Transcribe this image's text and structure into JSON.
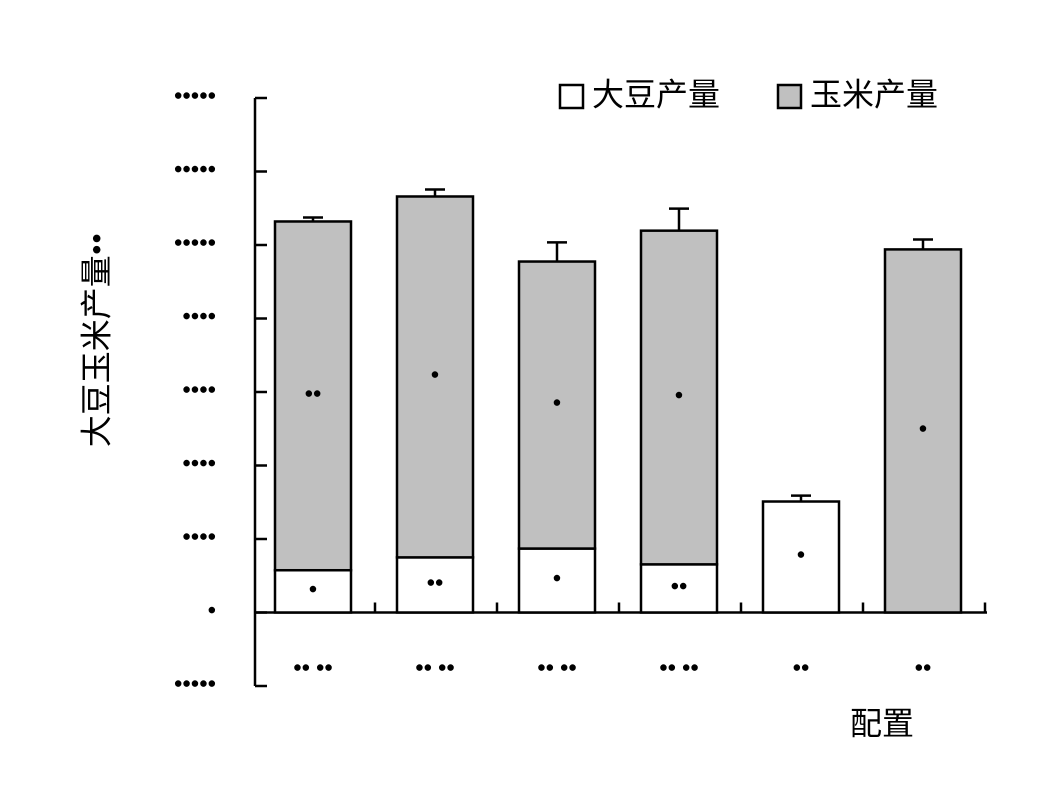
{
  "chart_data": {
    "type": "stacked_bar",
    "y_label": "大豆玉米产量••",
    "x_label": "配置",
    "categories": [
      "•• ••",
      "•• ••",
      "•• ••",
      "•• ••",
      "••",
      "••"
    ],
    "series": [
      {
        "name": "大豆产量",
        "color": "#ffffff",
        "values": [
          1150,
          1500,
          1740,
          1310,
          3020,
          null
        ],
        "errors": [
          80,
          160,
          240,
          160,
          160,
          null
        ],
        "letters": [
          "•",
          "••",
          "•",
          "••",
          "•",
          null
        ]
      },
      {
        "name": "玉米产量",
        "color": "#c0c0c0",
        "values": [
          9490,
          9820,
          7810,
          9080,
          null,
          9880
        ],
        "errors": [
          110,
          190,
          520,
          600,
          null,
          270
        ],
        "letters": [
          "••",
          "•",
          "•",
          "•",
          null,
          "•"
        ]
      }
    ],
    "ylim": [
      -2000,
      14000
    ],
    "yticks": [
      {
        "value": -2000,
        "label": "•••••"
      },
      {
        "value": 0,
        "label": "•"
      },
      {
        "value": 2000,
        "label": "••••"
      },
      {
        "value": 4000,
        "label": "••••"
      },
      {
        "value": 6000,
        "label": "••••"
      },
      {
        "value": 8000,
        "label": "••••"
      },
      {
        "value": 10000,
        "label": "•••••"
      },
      {
        "value": 12000,
        "label": "•••••"
      },
      {
        "value": 14000,
        "label": "•••••"
      }
    ],
    "legend": "top-right"
  }
}
